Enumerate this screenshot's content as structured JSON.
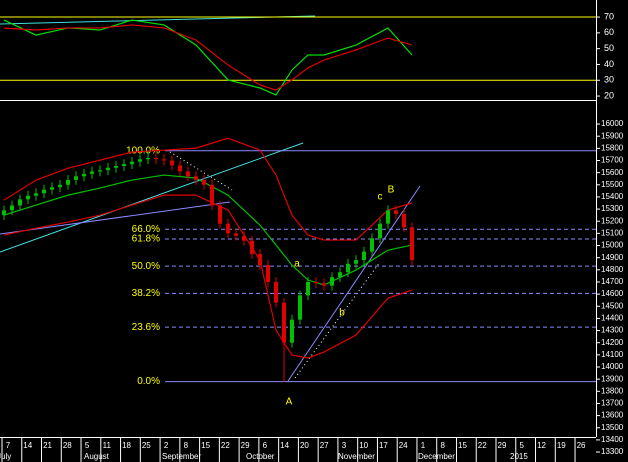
{
  "chart_data": [
    {
      "type": "line",
      "ylim": [
        17.5,
        80.8
      ],
      "yticks": [
        20,
        30,
        40,
        50,
        60,
        70
      ],
      "levels": [
        70,
        30
      ],
      "level_color": "#ffff00",
      "x": [
        0,
        4,
        8,
        12,
        16,
        20,
        24,
        28,
        32,
        34,
        36,
        38,
        40,
        44,
        48,
        51
      ],
      "series": [
        {
          "color": "#00e000",
          "values": [
            68.1,
            58.6,
            63.1,
            61.8,
            68.1,
            65,
            52.3,
            30.2,
            25.1,
            20.7,
            36.5,
            46,
            46,
            52.3,
            63.1,
            46
          ]
        },
        {
          "color": "#e00000",
          "values": [
            63,
            61.8,
            63.1,
            63.1,
            65,
            63.1,
            55.5,
            39.7,
            27,
            23.8,
            30.2,
            37.8,
            42.8,
            49.2,
            56.7,
            52.3
          ]
        }
      ]
    },
    {
      "type": "candlestick",
      "ylim": [
        13218,
        16198
      ],
      "yticks": [
        13300,
        13400,
        13500,
        13600,
        13700,
        13800,
        13900,
        14000,
        14100,
        14200,
        14300,
        14400,
        14500,
        14600,
        14700,
        14800,
        14900,
        15000,
        15100,
        15200,
        15300,
        15400,
        15500,
        15600,
        15700,
        15800,
        15900,
        16000
      ],
      "up_color": "#00c000",
      "down_color": "#e00000",
      "open": [
        15250,
        15290,
        15330,
        15380,
        15410,
        15430,
        15460,
        15480,
        15500,
        15540,
        15570,
        15590,
        15610,
        15620,
        15640,
        15655,
        15670,
        15690,
        15710,
        15720,
        15710,
        15700,
        15660,
        15610,
        15570,
        15540,
        15500,
        15330,
        15180,
        15100,
        15080,
        15040,
        14930,
        14840,
        14700,
        14530,
        14200,
        14390,
        14590,
        14700,
        14690,
        14670,
        14740,
        14780,
        14850,
        14880,
        14950,
        15060,
        15180,
        15290,
        15260,
        15150
      ],
      "high": [
        15330,
        15370,
        15420,
        15450,
        15470,
        15500,
        15520,
        15540,
        15580,
        15610,
        15630,
        15650,
        15660,
        15680,
        15695,
        15710,
        15730,
        15750,
        15780,
        15760,
        15750,
        15740,
        15700,
        15650,
        15610,
        15580,
        15540,
        15370,
        15220,
        15140,
        15120,
        15080,
        14970,
        14880,
        14740,
        14570,
        14430,
        14630,
        14740,
        14740,
        14730,
        14780,
        14820,
        14890,
        14920,
        14990,
        15100,
        15220,
        15330,
        15330,
        15300,
        15190
      ],
      "low": [
        15210,
        15250,
        15290,
        15340,
        15370,
        15390,
        15420,
        15440,
        15460,
        15500,
        15530,
        15550,
        15570,
        15580,
        15600,
        15615,
        15630,
        15650,
        15670,
        15670,
        15660,
        15620,
        15570,
        15530,
        15500,
        15460,
        15290,
        15140,
        15060,
        15040,
        15000,
        14890,
        14800,
        14660,
        14490,
        13880,
        14160,
        14350,
        14550,
        14650,
        14630,
        14630,
        14700,
        14740,
        14810,
        14840,
        14910,
        15020,
        15140,
        15220,
        15110,
        14840
      ],
      "close": [
        15290,
        15330,
        15380,
        15410,
        15430,
        15460,
        15480,
        15500,
        15540,
        15570,
        15590,
        15610,
        15620,
        15640,
        15655,
        15670,
        15690,
        15710,
        15720,
        15710,
        15700,
        15660,
        15610,
        15570,
        15540,
        15500,
        15330,
        15180,
        15100,
        15080,
        15040,
        14930,
        14840,
        14700,
        14530,
        14200,
        14390,
        14590,
        14700,
        14690,
        14670,
        14740,
        14780,
        14850,
        14880,
        14950,
        15060,
        15180,
        15290,
        15260,
        15150,
        14880
      ],
      "overlay_x": [
        0,
        4,
        8,
        12,
        16,
        20,
        24,
        28,
        32,
        34,
        36,
        38,
        40,
        44,
        48,
        51
      ],
      "overlays": [
        {
          "color": "#e00000",
          "values": [
            15374,
            15538,
            15637,
            15703,
            15769,
            15785,
            15802,
            15884,
            15785,
            15580,
            15250,
            15086,
            15045,
            15045,
            15292,
            15350
          ]
        },
        {
          "color": "#00c000",
          "values": [
            15250,
            15333,
            15415,
            15473,
            15539,
            15580,
            15555,
            15415,
            15168,
            15004,
            14839,
            14716,
            14675,
            14798,
            14962,
            15004
          ]
        },
        {
          "color": "#e00000",
          "values": [
            15086,
            15143,
            15193,
            15250,
            15333,
            15415,
            15415,
            15292,
            14880,
            14304,
            14098,
            14074,
            14123,
            14263,
            14567,
            14633
          ]
        }
      ],
      "fib_color": "#8a8aff",
      "fib_levels": [
        {
          "label": "100.0%",
          "value": 15780
        },
        {
          "label": "66.0%",
          "value": 15134
        },
        {
          "label": "61.8%",
          "value": 15054
        },
        {
          "label": "50.0%",
          "value": 14830
        },
        {
          "label": "38.2%",
          "value": 14606
        },
        {
          "label": "23.6%",
          "value": 14328
        },
        {
          "label": "0.0%",
          "value": 13880
        }
      ],
      "annotations": [
        "A",
        "B",
        "a",
        "b",
        "c"
      ],
      "x_labels": [
        "7",
        "14",
        "21",
        "28",
        "5",
        "11",
        "18",
        "25",
        "2",
        "8",
        "15",
        "22",
        "29",
        "6",
        "14",
        "20",
        "27",
        "3",
        "10",
        "17",
        "24",
        "1",
        "8",
        "15",
        "22",
        "29",
        "5",
        "12",
        "19",
        "26"
      ],
      "months": [
        "July",
        "August",
        "September",
        "October",
        "November",
        "December",
        "2015"
      ]
    }
  ]
}
